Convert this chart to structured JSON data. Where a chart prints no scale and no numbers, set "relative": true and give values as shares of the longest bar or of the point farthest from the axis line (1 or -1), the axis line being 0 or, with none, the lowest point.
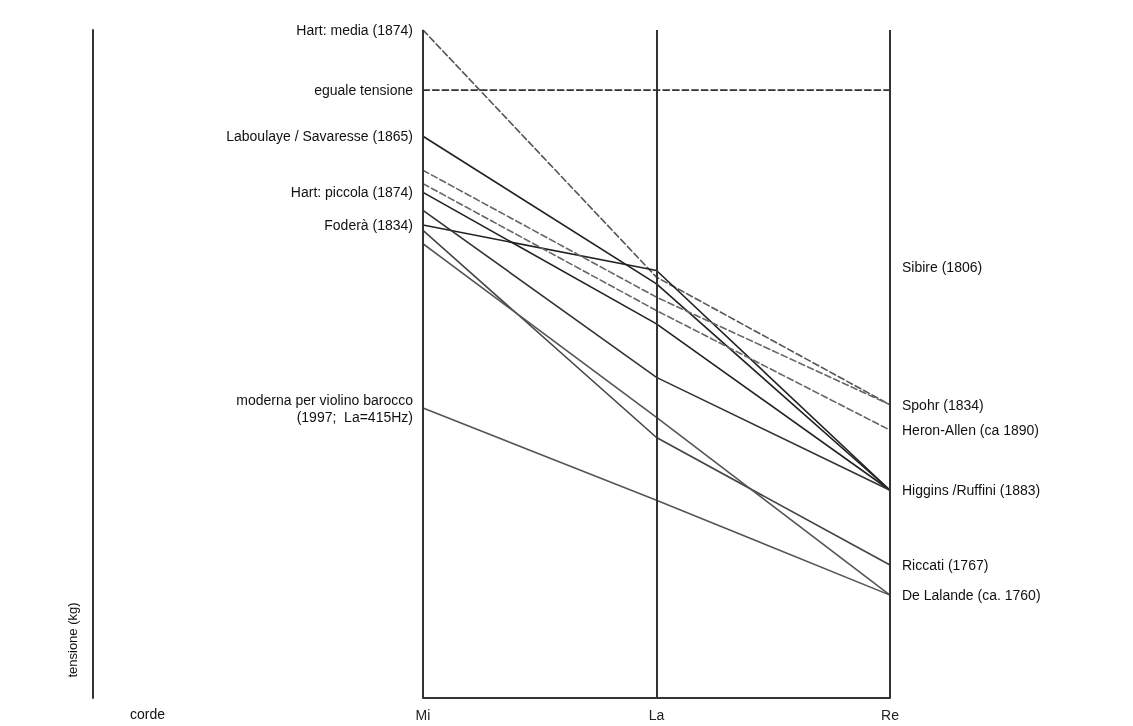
{
  "chart_data": {
    "type": "line",
    "relative": true,
    "categories": [
      "Mi",
      "La",
      "Re"
    ],
    "series": [
      {
        "color": "#555555",
        "line_style": "dashed",
        "values": [
          1.0,
          0.63,
          0.439
        ]
      },
      {
        "color": "#333333",
        "line_style": "dashed",
        "values": [
          0.91,
          0.91,
          0.91
        ]
      },
      {
        "color": "#222222",
        "values": [
          0.841,
          0.62,
          0.311
        ]
      },
      {
        "color": "#222222",
        "values": [
          0.757,
          0.56,
          0.311
        ]
      },
      {
        "color": "#222222",
        "values": [
          0.708,
          0.64,
          0.311
        ]
      },
      {
        "color": "#666666",
        "line_style": "dashed",
        "values": [
          0.79,
          0.6,
          0.439
        ]
      },
      {
        "color": "#666666",
        "line_style": "dashed",
        "values": [
          0.77,
          0.58,
          0.401
        ]
      },
      {
        "color": "#333333",
        "values": [
          0.73,
          0.48,
          0.311
        ]
      },
      {
        "color": "#444444",
        "values": [
          0.7,
          0.39,
          0.199
        ]
      },
      {
        "color": "#555555",
        "values": [
          0.68,
          0.42,
          0.154
        ]
      },
      {
        "color": "#555555",
        "values": [
          0.434,
          0.296,
          0.154
        ]
      }
    ],
    "annotations": [
      {
        "text": "Hart: media (1874)",
        "x": "Mi",
        "y": 1.0
      },
      {
        "text": "eguale tensione",
        "x": "Mi",
        "y": 0.91
      },
      {
        "text": "Laboulaye / Savaresse (1865)",
        "x": "Mi",
        "y": 0.841
      },
      {
        "text": "Hart: piccola (1874)",
        "x": "Mi",
        "y": 0.757
      },
      {
        "text": "Foderà (1834)",
        "x": "Mi",
        "y": 0.708
      },
      {
        "text": "moderna per violino barocco\n(1997;  La=415Hz)",
        "x": "Mi",
        "y": 0.434
      },
      "Sibire (1806)",
      "corde",
      "tensione (kg)",
      {
        "text": "Spohr (1834)",
        "x": "Re",
        "y": 0.439
      },
      {
        "text": "Heron-Allen (ca 1890)",
        "x": "Re",
        "y": 0.401
      },
      {
        "text": "Higgins /Ruffini (1883)",
        "x": "Re",
        "y": 0.311
      },
      {
        "text": "Riccati (1767)",
        "x": "Re",
        "y": 0.199
      },
      {
        "text": "De Lalande (ca. 1760)",
        "x": "Re",
        "y": 0.154
      }
    ],
    "ref_lines": [
      {
        "axis": "x",
        "value": "Mi",
        "color": "#333333"
      },
      {
        "axis": "x",
        "value": "La",
        "color": "#333333"
      },
      {
        "axis": "x",
        "value": "Re",
        "color": "#333333"
      }
    ],
    "marker": "none"
  }
}
